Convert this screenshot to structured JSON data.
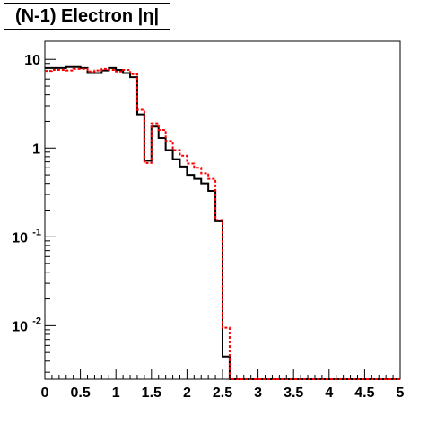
{
  "chart_data": {
    "type": "line",
    "title": "(N-1) Electron |η|",
    "xlabel": "",
    "ylabel": "",
    "xlim": [
      0,
      5
    ],
    "ylim": [
      0.0025,
      16
    ],
    "yscale": "log",
    "grid": false,
    "legend": "none",
    "bin_width": 0.1,
    "x_ticks": [
      {
        "value": 0,
        "label": "0"
      },
      {
        "value": 0.5,
        "label": "0.5"
      },
      {
        "value": 1,
        "label": "1"
      },
      {
        "value": 1.5,
        "label": "1.5"
      },
      {
        "value": 2,
        "label": "2"
      },
      {
        "value": 2.5,
        "label": "2.5"
      },
      {
        "value": 3,
        "label": "3"
      },
      {
        "value": 3.5,
        "label": "3.5"
      },
      {
        "value": 4,
        "label": "4"
      },
      {
        "value": 4.5,
        "label": "4.5"
      },
      {
        "value": 5,
        "label": "5"
      }
    ],
    "y_ticks": [
      {
        "value": 10,
        "label": "10"
      },
      {
        "value": 1,
        "label": "1"
      },
      {
        "value": 0.1,
        "label": "10",
        "exponent": "-1"
      },
      {
        "value": 0.01,
        "label": "10",
        "exponent": "-2"
      }
    ],
    "series": [
      {
        "color": "#000000",
        "style": "solid",
        "bin_edges": [
          0.0,
          0.1,
          0.2,
          0.3,
          0.4,
          0.5,
          0.6,
          0.7,
          0.8,
          0.9,
          1.0,
          1.1,
          1.2,
          1.3,
          1.4,
          1.5,
          1.6,
          1.7,
          1.8,
          1.9,
          2.0,
          2.1,
          2.2,
          2.3,
          2.4,
          2.5,
          2.6,
          2.7,
          2.8
        ],
        "values": [
          8.0,
          8.0,
          8.0,
          8.2,
          8.2,
          8.0,
          7.0,
          7.0,
          7.5,
          8.0,
          7.6,
          7.0,
          6.3,
          2.4,
          0.72,
          1.75,
          1.3,
          0.95,
          0.75,
          0.62,
          0.5,
          0.45,
          0.4,
          0.33,
          0.15,
          0.0045,
          0.0004,
          0.0004
        ]
      },
      {
        "color": "#ff0000",
        "style": "dashed",
        "bin_edges": [
          0.0,
          0.1,
          0.2,
          0.3,
          0.4,
          0.5,
          0.6,
          0.7,
          0.8,
          0.9,
          1.0,
          1.1,
          1.2,
          1.3,
          1.4,
          1.5,
          1.6,
          1.7,
          1.8,
          1.9,
          2.0,
          2.1,
          2.2,
          2.3,
          2.4,
          2.5,
          2.6,
          2.7,
          2.8
        ],
        "values": [
          7.4,
          7.6,
          7.6,
          7.5,
          7.8,
          7.8,
          7.3,
          7.5,
          7.8,
          7.6,
          7.3,
          7.6,
          6.8,
          2.7,
          0.68,
          1.9,
          1.6,
          1.2,
          0.95,
          0.82,
          0.67,
          0.6,
          0.52,
          0.45,
          0.155,
          0.0095,
          0.0004,
          0.0004
        ]
      }
    ]
  }
}
